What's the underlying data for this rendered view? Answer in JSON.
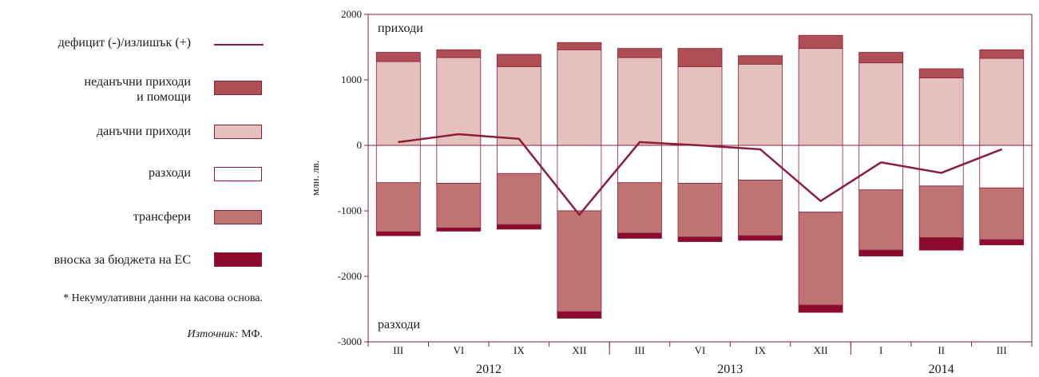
{
  "legend": {
    "deficit": "дефицит (-)/излишък (+)",
    "nontax_line1": "неданъчни приходи",
    "nontax_line2": "и помощи",
    "tax": "данъчни приходи",
    "expenses": "разходи",
    "transfers": "трансфери",
    "eu": "вноска за бюджета на ЕС"
  },
  "note": "* Некумулативни данни на касова основа.",
  "source_label": "Източник:",
  "source_value": " МФ.",
  "colors": {
    "tax": "#e5c1bd",
    "nontax": "#b04e56",
    "transfers": "#c07373",
    "eu": "#8c0a2e",
    "line": "#8c1e3c",
    "frame": "#8c1e3c",
    "expenses_fill": "#ffffff"
  },
  "chart_data": {
    "type": "bar",
    "ylabel": "млн. лв.",
    "ylim": [
      -3000,
      2000
    ],
    "yticks": [
      2000,
      1000,
      0,
      -1000,
      -2000,
      -3000
    ],
    "annotations": {
      "top": "приходи",
      "bottom": "разходи"
    },
    "categories": [
      "III",
      "VI",
      "IX",
      "XII",
      "III",
      "VI",
      "IX",
      "XII",
      "I",
      "II",
      "III"
    ],
    "years": [
      {
        "label": "2012",
        "span": 4
      },
      {
        "label": "2013",
        "span": 4
      },
      {
        "label": "2014",
        "span": 3
      }
    ],
    "series": [
      {
        "name": "данъчни приходи",
        "values": [
          1280,
          1340,
          1200,
          1460,
          1340,
          1200,
          1240,
          1480,
          1260,
          1030,
          1330
        ]
      },
      {
        "name": "неданъчни приходи и помощи",
        "values": [
          140,
          120,
          190,
          110,
          140,
          280,
          130,
          200,
          160,
          140,
          130
        ]
      },
      {
        "name": "разходи",
        "values": [
          -570,
          -580,
          -430,
          -1000,
          -570,
          -580,
          -530,
          -1020,
          -680,
          -620,
          -650
        ]
      },
      {
        "name": "трансфери",
        "values": [
          -750,
          -680,
          -780,
          -1540,
          -770,
          -820,
          -850,
          -1420,
          -920,
          -790,
          -790
        ]
      },
      {
        "name": "вноска за бюджета на ЕС",
        "values": [
          -60,
          -50,
          -70,
          -100,
          -80,
          -70,
          -70,
          -110,
          -90,
          -190,
          -80
        ]
      },
      {
        "name": "дефицит (-)/излишък (+)",
        "values": [
          50,
          170,
          100,
          -1060,
          50,
          0,
          -60,
          -850,
          -260,
          -420,
          -60
        ]
      }
    ]
  }
}
